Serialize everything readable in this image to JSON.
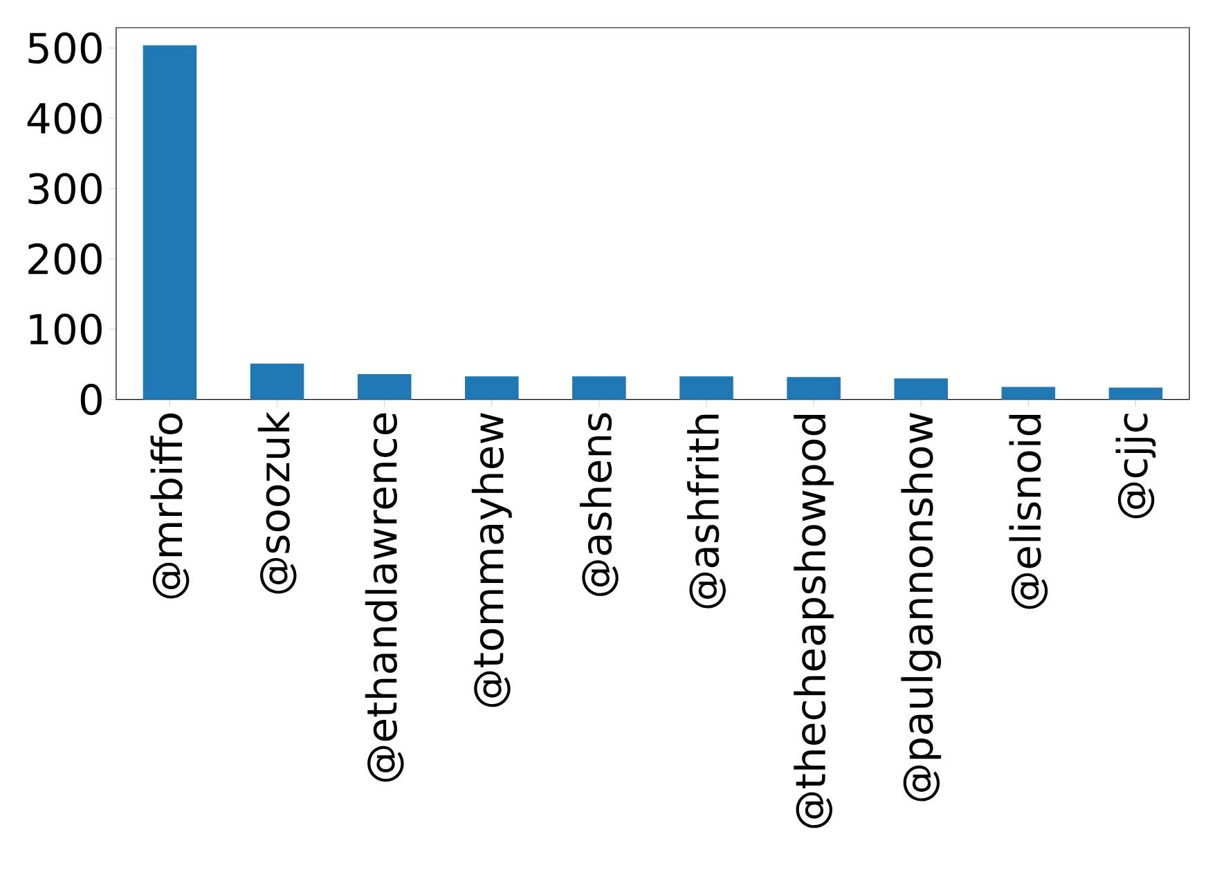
{
  "chart_data": {
    "type": "bar",
    "categories": [
      "@mrbiffo",
      "@soozuk",
      "@ethandlawrence",
      "@tommayhew",
      "@ashens",
      "@ashfrith",
      "@thecheapshowpod",
      "@paulgannonshow",
      "@elisnoid",
      "@cjjc"
    ],
    "values": [
      504,
      51,
      36,
      33,
      33,
      33,
      32,
      30,
      18,
      17
    ],
    "color": "#1f77b4",
    "ylim": [
      0,
      529
    ],
    "yticks": [
      0,
      100,
      200,
      300,
      400,
      500
    ],
    "grid": false
  }
}
